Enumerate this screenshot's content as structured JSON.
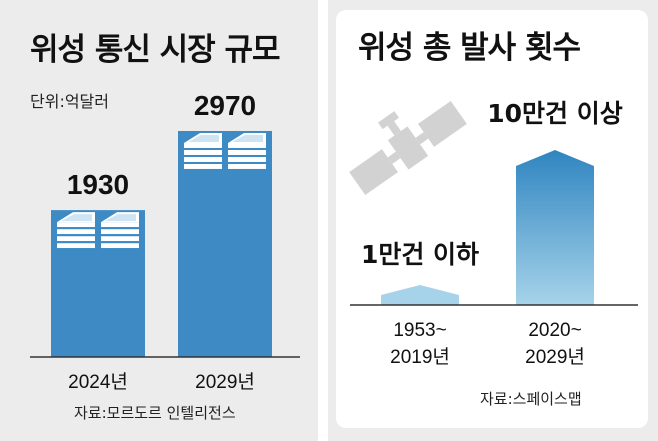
{
  "left": {
    "title": "위성 통신 시장 규모",
    "unit": "단위:억달러",
    "source": "자료:모르도르 인텔리전스"
  },
  "right": {
    "title": "위성 총 발사 횟수",
    "source": "자료:스페이스맵",
    "satellite_icon": "satellite-icon"
  },
  "colors": {
    "bar_blue": "#3d8ac4",
    "arrow_light": "#a7d3ea",
    "arrow_dark": "#2f85c0",
    "panel_bg": "#ececec"
  },
  "chart_data": [
    {
      "type": "bar",
      "title": "위성 통신 시장 규모",
      "unit": "단위:억달러",
      "categories": [
        "2024년",
        "2029년"
      ],
      "values": [
        1930,
        2970
      ],
      "value_labels": [
        "1930",
        "2970"
      ]
    },
    {
      "type": "bar",
      "title": "위성 총 발사 횟수",
      "categories": [
        "1953~ 2019년",
        "2020~ 2029년"
      ],
      "category_lines": [
        [
          "1953~",
          "2019년"
        ],
        [
          "2020~",
          "2029년"
        ]
      ],
      "values": [
        10000,
        100000
      ],
      "value_labels": [
        "1만건 이하",
        "10만건 이상"
      ]
    }
  ]
}
